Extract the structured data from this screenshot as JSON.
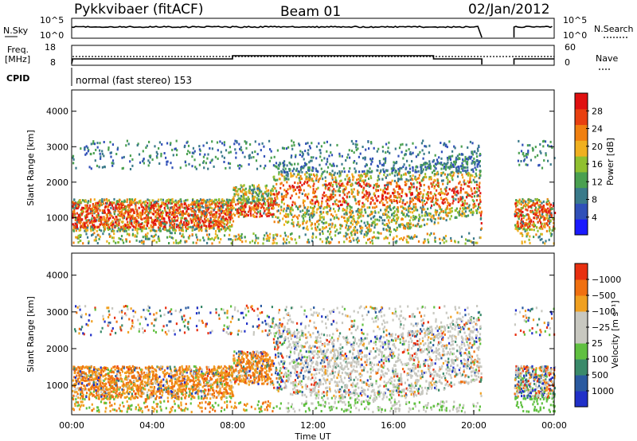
{
  "header": {
    "station": "Pykkvibaer (fitACF)",
    "beam": "Beam 01",
    "date": "02/Jan/2012"
  },
  "strips": {
    "nsky_label": "N.Sky",
    "nsearch_label": "N.Search",
    "nsky_ticks": [
      "10^5",
      "10^0"
    ],
    "nsearch_ticks": [
      "10^5",
      "10^0"
    ],
    "freq_label_1": "Freq.",
    "freq_label_2": "[MHz]",
    "freq_ticks": [
      "18",
      "8"
    ],
    "nave_label": "Nave",
    "nave_ticks": [
      "60",
      "0"
    ],
    "cpid_label": "CPID",
    "cpid_text": "normal (fast stereo) 153"
  },
  "chart_data": [
    {
      "type": "heatmap",
      "name": "power",
      "ylabel": "Slant Range [km]",
      "yticks": [
        "1000",
        "2000",
        "3000",
        "4000"
      ],
      "ylim": [
        200,
        4600
      ],
      "xlim": [
        0,
        24
      ],
      "colorbar": {
        "label": "Power [dB]",
        "ticks": [
          "4",
          "8",
          "12",
          "16",
          "20",
          "24",
          "28"
        ],
        "colors": [
          "#1a1aff",
          "#3050b8",
          "#3a7a8a",
          "#4aa050",
          "#90c030",
          "#f0b020",
          "#f08010",
          "#e84010",
          "#e01010"
        ]
      }
    },
    {
      "type": "heatmap",
      "name": "velocity",
      "ylabel": "Slant Range [km]",
      "yticks": [
        "1000",
        "2000",
        "3000",
        "4000"
      ],
      "ylim": [
        200,
        4600
      ],
      "xlim": [
        0,
        24
      ],
      "colorbar": {
        "label": "Velocity [m s⁻¹]",
        "ticks": [
          "1000",
          "500",
          "100",
          "25",
          "−25",
          "−100",
          "−500",
          "−1000"
        ],
        "colors": [
          "#2030c8",
          "#2a5aa0",
          "#3a8a6a",
          "#60c040",
          "#c8c8c0",
          "#c8c8c0",
          "#f0a020",
          "#f07010",
          "#e83010"
        ]
      }
    }
  ],
  "xaxis": {
    "label": "Time UT",
    "ticks": [
      "00:00",
      "04:00",
      "08:00",
      "12:00",
      "16:00",
      "20:00",
      "00:00"
    ]
  }
}
